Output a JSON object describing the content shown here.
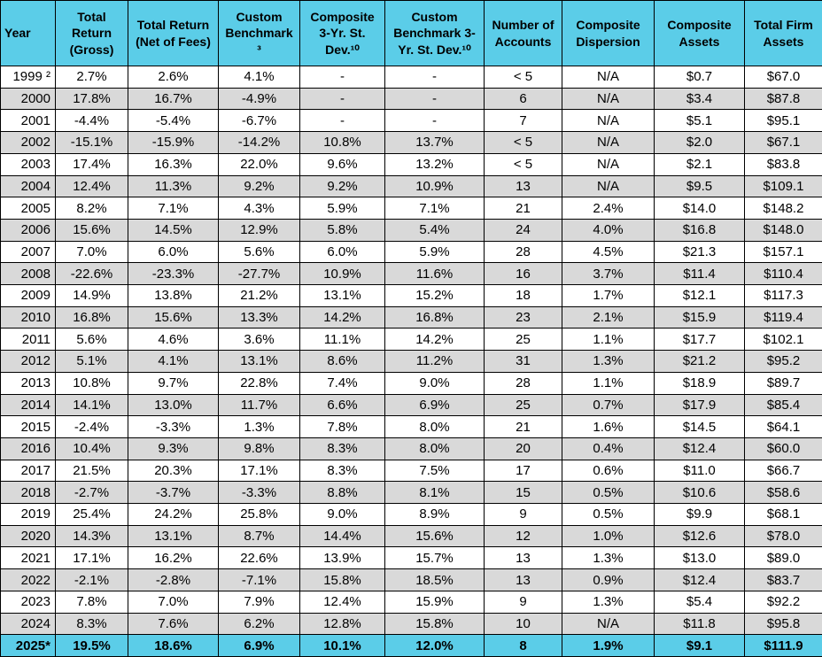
{
  "colors": {
    "header_bg": "#5BCDE8",
    "alt_row_bg": "#D9D9D9",
    "total_row_bg": "#5BCDE8",
    "border": "#000000"
  },
  "table": {
    "header_display": [
      "Year",
      "Total\nReturn\n(Gross)",
      "Total Return\n(Net of Fees)",
      "Custom\nBenchmark\n³",
      "Composite\n3-Yr. St.\nDev.¹⁰",
      "Custom\nBenchmark 3-\nYr. St. Dev.¹⁰",
      "Number of\nAccounts",
      "Composite\nDispersion",
      "Composite\nAssets",
      "Total Firm\nAssets"
    ]
  },
  "chart_data": {
    "type": "table",
    "title": "",
    "columns": [
      "Year",
      "Total Return (Gross)",
      "Total Return (Net of Fees)",
      "Custom Benchmark ³",
      "Composite 3-Yr. St. Dev.¹⁰",
      "Custom Benchmark 3-Yr. St. Dev.¹⁰",
      "Number of Accounts",
      "Composite Dispersion",
      "Composite Assets",
      "Total Firm Assets"
    ],
    "rows": [
      [
        "1999 ²",
        "2.7%",
        "2.6%",
        "4.1%",
        "-",
        "-",
        "< 5",
        "N/A",
        "$0.7",
        "$67.0"
      ],
      [
        "2000",
        "17.8%",
        "16.7%",
        "-4.9%",
        "-",
        "-",
        "6",
        "N/A",
        "$3.4",
        "$87.8"
      ],
      [
        "2001",
        "-4.4%",
        "-5.4%",
        "-6.7%",
        "-",
        "-",
        "7",
        "N/A",
        "$5.1",
        "$95.1"
      ],
      [
        "2002",
        "-15.1%",
        "-15.9%",
        "-14.2%",
        "10.8%",
        "13.7%",
        "< 5",
        "N/A",
        "$2.0",
        "$67.1"
      ],
      [
        "2003",
        "17.4%",
        "16.3%",
        "22.0%",
        "9.6%",
        "13.2%",
        "< 5",
        "N/A",
        "$2.1",
        "$83.8"
      ],
      [
        "2004",
        "12.4%",
        "11.3%",
        "9.2%",
        "9.2%",
        "10.9%",
        "13",
        "N/A",
        "$9.5",
        "$109.1"
      ],
      [
        "2005",
        "8.2%",
        "7.1%",
        "4.3%",
        "5.9%",
        "7.1%",
        "21",
        "2.4%",
        "$14.0",
        "$148.2"
      ],
      [
        "2006",
        "15.6%",
        "14.5%",
        "12.9%",
        "5.8%",
        "5.4%",
        "24",
        "4.0%",
        "$16.8",
        "$148.0"
      ],
      [
        "2007",
        "7.0%",
        "6.0%",
        "5.6%",
        "6.0%",
        "5.9%",
        "28",
        "4.5%",
        "$21.3",
        "$157.1"
      ],
      [
        "2008",
        "-22.6%",
        "-23.3%",
        "-27.7%",
        "10.9%",
        "11.6%",
        "16",
        "3.7%",
        "$11.4",
        "$110.4"
      ],
      [
        "2009",
        "14.9%",
        "13.8%",
        "21.2%",
        "13.1%",
        "15.2%",
        "18",
        "1.7%",
        "$12.1",
        "$117.3"
      ],
      [
        "2010",
        "16.8%",
        "15.6%",
        "13.3%",
        "14.2%",
        "16.8%",
        "23",
        "2.1%",
        "$15.9",
        "$119.4"
      ],
      [
        "2011",
        "5.6%",
        "4.6%",
        "3.6%",
        "11.1%",
        "14.2%",
        "25",
        "1.1%",
        "$17.7",
        "$102.1"
      ],
      [
        "2012",
        "5.1%",
        "4.1%",
        "13.1%",
        "8.6%",
        "11.2%",
        "31",
        "1.3%",
        "$21.2",
        "$95.2"
      ],
      [
        "2013",
        "10.8%",
        "9.7%",
        "22.8%",
        "7.4%",
        "9.0%",
        "28",
        "1.1%",
        "$18.9",
        "$89.7"
      ],
      [
        "2014",
        "14.1%",
        "13.0%",
        "11.7%",
        "6.6%",
        "6.9%",
        "25",
        "0.7%",
        "$17.9",
        "$85.4"
      ],
      [
        "2015",
        "-2.4%",
        "-3.3%",
        "1.3%",
        "7.8%",
        "8.0%",
        "21",
        "1.6%",
        "$14.5",
        "$64.1"
      ],
      [
        "2016",
        "10.4%",
        "9.3%",
        "9.8%",
        "8.3%",
        "8.0%",
        "20",
        "0.4%",
        "$12.4",
        "$60.0"
      ],
      [
        "2017",
        "21.5%",
        "20.3%",
        "17.1%",
        "8.3%",
        "7.5%",
        "17",
        "0.6%",
        "$11.0",
        "$66.7"
      ],
      [
        "2018",
        "-2.7%",
        "-3.7%",
        "-3.3%",
        "8.8%",
        "8.1%",
        "15",
        "0.5%",
        "$10.6",
        "$58.6"
      ],
      [
        "2019",
        "25.4%",
        "24.2%",
        "25.8%",
        "9.0%",
        "8.9%",
        "9",
        "0.5%",
        "$9.9",
        "$68.1"
      ],
      [
        "2020",
        "14.3%",
        "13.1%",
        "8.7%",
        "14.4%",
        "15.6%",
        "12",
        "1.0%",
        "$12.6",
        "$78.0"
      ],
      [
        "2021",
        "17.1%",
        "16.2%",
        "22.6%",
        "13.9%",
        "15.7%",
        "13",
        "1.3%",
        "$13.0",
        "$89.0"
      ],
      [
        "2022",
        "-2.1%",
        "-2.8%",
        "-7.1%",
        "15.8%",
        "18.5%",
        "13",
        "0.9%",
        "$12.4",
        "$83.7"
      ],
      [
        "2023",
        "7.8%",
        "7.0%",
        "7.9%",
        "12.4%",
        "15.9%",
        "9",
        "1.3%",
        "$5.4",
        "$92.2"
      ],
      [
        "2024",
        "8.3%",
        "7.6%",
        "6.2%",
        "12.8%",
        "15.8%",
        "10",
        "N/A",
        "$11.8",
        "$95.8"
      ]
    ],
    "total_row": [
      "2025*",
      "19.5%",
      "18.6%",
      "6.9%",
      "10.1%",
      "12.0%",
      "8",
      "1.9%",
      "$9.1",
      "$111.9"
    ]
  }
}
